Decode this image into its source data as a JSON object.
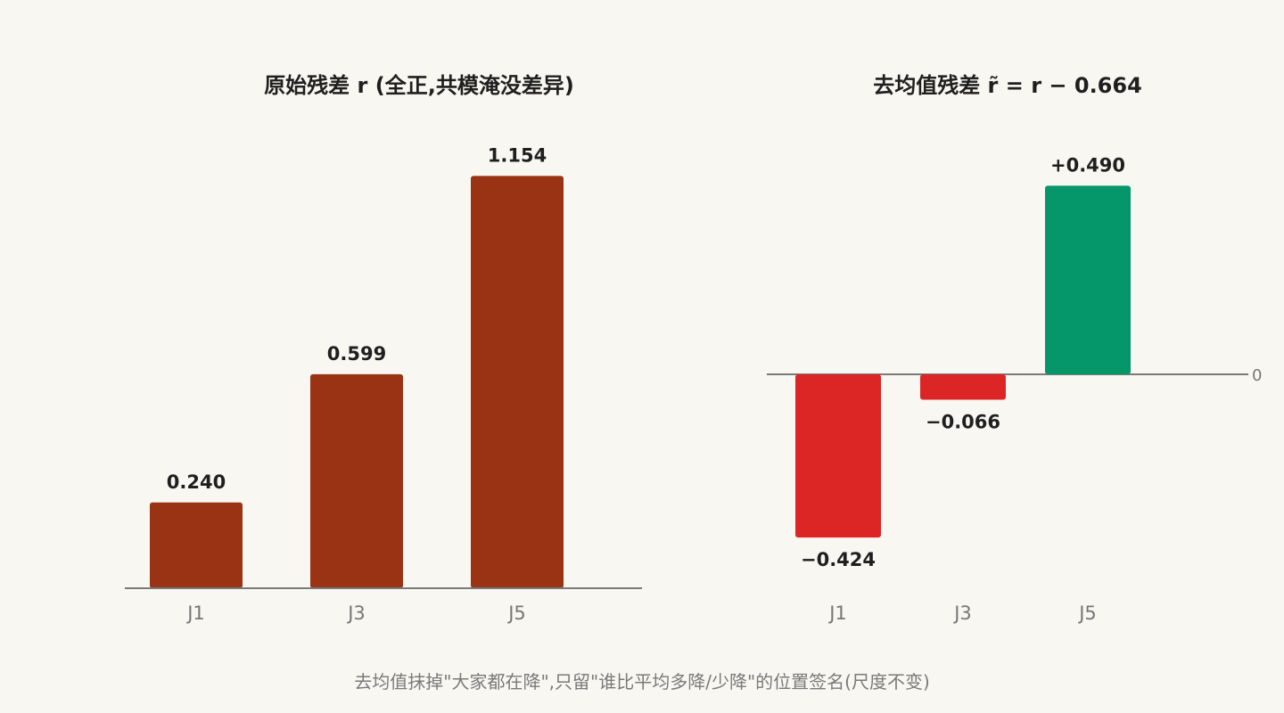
{
  "colors": {
    "background": "#f9f7f2",
    "raw_bar": "#9a3214",
    "negative_bar": "#dc2626",
    "positive_bar": "#059669",
    "axis": "#7a7a7a",
    "tick_text": "#777777",
    "label_text": "#1f1f1f"
  },
  "chart_data": [
    {
      "type": "bar",
      "title": "原始残差 r (全正,共模淹没差异)",
      "categories": [
        "J1",
        "J3",
        "J5"
      ],
      "values": [
        0.24,
        0.599,
        1.154
      ],
      "value_labels": [
        "0.240",
        "0.599",
        "1.154"
      ],
      "ylim": [
        0,
        1.3
      ],
      "grid": false,
      "legend": "none"
    },
    {
      "type": "bar",
      "title": "去均值残差 r̃ = r − 0.664",
      "categories": [
        "J1",
        "J3",
        "J5"
      ],
      "values": [
        -0.424,
        -0.066,
        0.49
      ],
      "value_labels": [
        "−0.424",
        "−0.066",
        "+0.490"
      ],
      "zero_label": "0",
      "ylim": [
        -0.6,
        0.6
      ],
      "grid": false,
      "legend": "none"
    }
  ],
  "caption": "去均值抹掉\"大家都在降\",只留\"谁比平均多降/少降\"的位置签名(尺度不变)"
}
